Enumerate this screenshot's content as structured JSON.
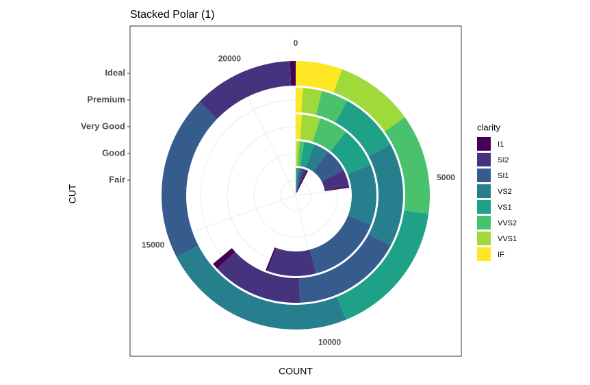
{
  "chart_data": {
    "type": "polar-stacked-bar",
    "title": "Stacked Polar (1)",
    "x_label": "COUNT",
    "y_label": "CUT",
    "legend_title": "clarity",
    "categories": [
      "Fair",
      "Good",
      "Very Good",
      "Premium",
      "Ideal"
    ],
    "ylim": [
      0,
      21551
    ],
    "yticks": [
      0,
      5000,
      10000,
      15000,
      20000
    ],
    "grid": true,
    "series": [
      {
        "name": "I1",
        "color": "#440154",
        "values": [
          210,
          96,
          84,
          205,
          146
        ]
      },
      {
        "name": "SI2",
        "color": "#46337E",
        "values": [
          466,
          1081,
          2100,
          2949,
          2598
        ]
      },
      {
        "name": "SI1",
        "color": "#365C8D",
        "values": [
          408,
          1560,
          3240,
          3575,
          4282
        ]
      },
      {
        "name": "VS2",
        "color": "#277F8E",
        "values": [
          261,
          978,
          2591,
          3357,
          5071
        ]
      },
      {
        "name": "VS1",
        "color": "#1FA187",
        "values": [
          170,
          648,
          1775,
          1989,
          3589
        ]
      },
      {
        "name": "VVS2",
        "color": "#4AC16D",
        "values": [
          69,
          286,
          1235,
          870,
          2606
        ]
      },
      {
        "name": "VVS1",
        "color": "#9FDA3A",
        "values": [
          17,
          186,
          789,
          616,
          2047
        ]
      },
      {
        "name": "IF",
        "color": "#FDE725",
        "values": [
          9,
          71,
          268,
          230,
          1212
        ]
      }
    ]
  }
}
